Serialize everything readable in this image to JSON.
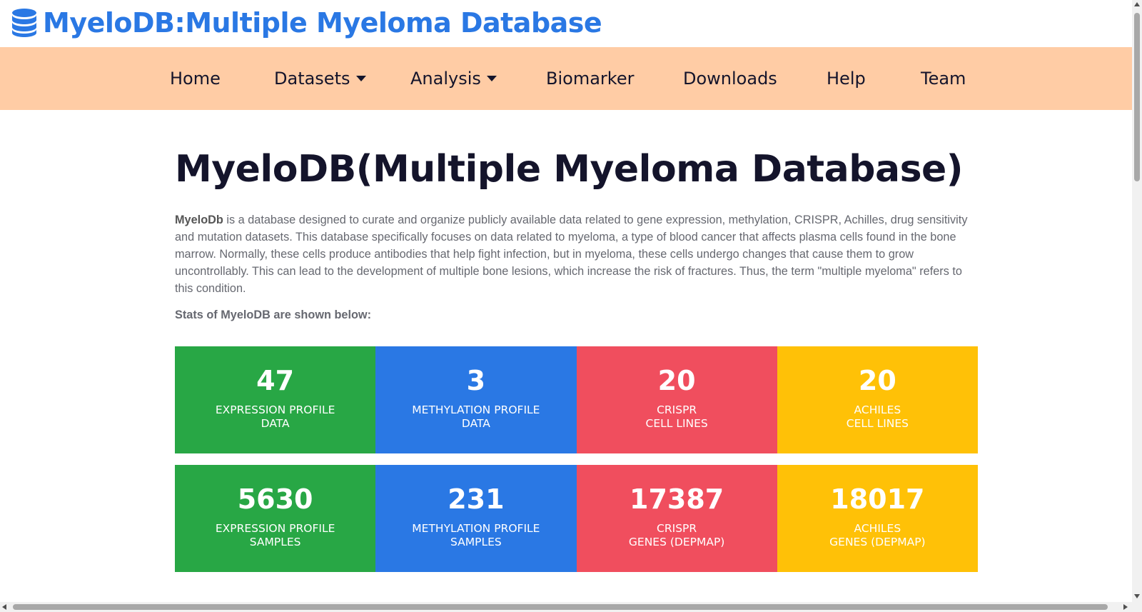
{
  "brand": {
    "title": "MyeloDB:Multiple Myeloma Database",
    "icon": "database-icon",
    "color": "#2a78e4"
  },
  "nav": {
    "background": "#ffcca5",
    "items": [
      {
        "label": "Home",
        "dropdown": false
      },
      {
        "label": "Datasets",
        "dropdown": true
      },
      {
        "label": "Analysis",
        "dropdown": true
      },
      {
        "label": "Biomarker",
        "dropdown": false
      },
      {
        "label": "Downloads",
        "dropdown": false
      },
      {
        "label": "Help",
        "dropdown": false
      },
      {
        "label": "Team",
        "dropdown": false
      }
    ]
  },
  "main": {
    "title": "MyeloDB(Multiple Myeloma Database)",
    "intro_bold": "MyeloDb",
    "intro_text": " is a database designed to curate and organize publicly available data related to gene expression, methylation, CRISPR, Achilles, drug sensitivity and mutation datasets. This database specifically focuses on data related to myeloma, a type of blood cancer that affects plasma cells found in the bone marrow. Normally, these cells produce antibodies that help fight infection, but in myeloma, these cells undergo changes that cause them to grow uncontrollably. This can lead to the development of multiple bone lesions, which increase the risk of fractures. Thus, the term \"multiple myeloma\" refers to this condition.",
    "stats_heading": "Stats of MyeloDB are shown below:"
  },
  "stats": {
    "colors": {
      "green": "#28a745",
      "blue": "#2a78e4",
      "red": "#f04e5e",
      "yellow": "#ffc107"
    },
    "row1": [
      {
        "value": "47",
        "label": "EXPRESSION PROFILE\nDATA"
      },
      {
        "value": "3",
        "label": "METHYLATION PROFILE\nDATA"
      },
      {
        "value": "20",
        "label": "CRISPR\nCELL LINES"
      },
      {
        "value": "20",
        "label": "ACHILES\nCELL LINES"
      }
    ],
    "row2": [
      {
        "value": "5630",
        "label": "EXPRESSION PROFILE\nSAMPLES"
      },
      {
        "value": "231",
        "label": "METHYLATION PROFILE\nSAMPLES"
      },
      {
        "value": "17387",
        "label": "CRISPR\nGENES (DEPMAP)"
      },
      {
        "value": "18017",
        "label": "ACHILES\nGENES (DEPMAP)"
      }
    ]
  }
}
